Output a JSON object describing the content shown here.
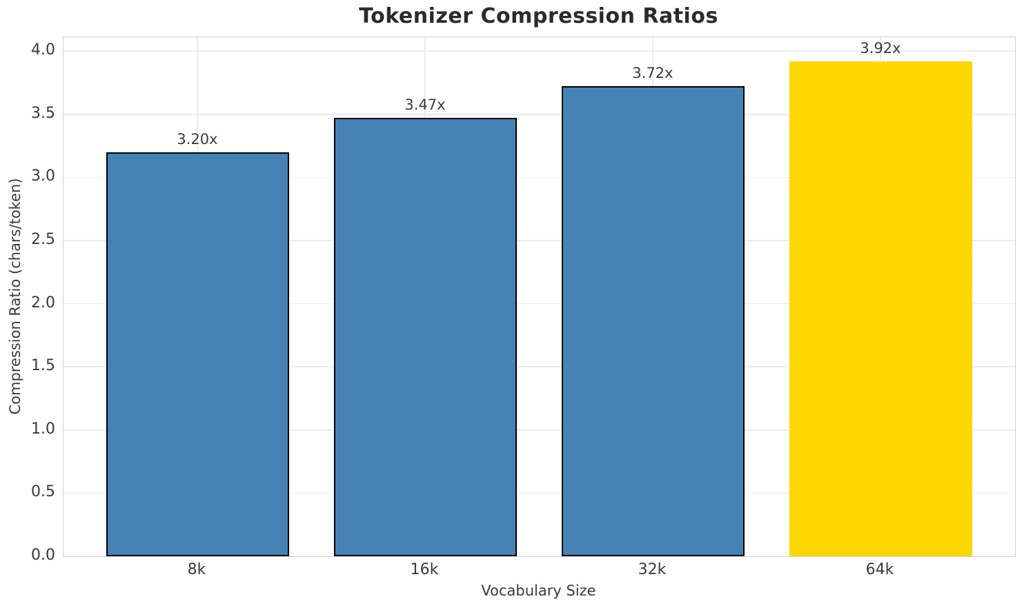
{
  "chart_data": {
    "type": "bar",
    "title": "Tokenizer Compression Ratios",
    "xlabel": "Vocabulary Size",
    "ylabel": "Compression Ratio (chars/token)",
    "categories": [
      "8k",
      "16k",
      "32k",
      "64k"
    ],
    "values": [
      3.2,
      3.47,
      3.72,
      3.92
    ],
    "value_labels": [
      "3.20x",
      "3.47x",
      "3.72x",
      "3.92x"
    ],
    "series": [
      {
        "name": "Compression Ratio",
        "values": [
          3.2,
          3.47,
          3.72,
          3.92
        ]
      }
    ],
    "bar_colors": [
      "#4682B4",
      "#4682B4",
      "#4682B4",
      "#FFD700"
    ],
    "bar_edge_colors": [
      "#000000",
      "#000000",
      "#000000",
      "none"
    ],
    "ylim": [
      0,
      4.11
    ],
    "yticks": [
      0.0,
      0.5,
      1.0,
      1.5,
      2.0,
      2.5,
      3.0,
      3.5,
      4.0
    ],
    "ytick_labels": [
      "0.0",
      "0.5",
      "1.0",
      "1.5",
      "2.0",
      "2.5",
      "3.0",
      "3.5",
      "4.0"
    ],
    "grid": "both",
    "legend": "none"
  },
  "colors": {
    "grid": "#ececec",
    "spine": "#cfcfcf",
    "title_text": "#2b2b2b",
    "tick_text": "#3a3a3a",
    "background": "#ffffff",
    "bar_default": "#4682B4",
    "bar_highlight": "#FFD700"
  }
}
